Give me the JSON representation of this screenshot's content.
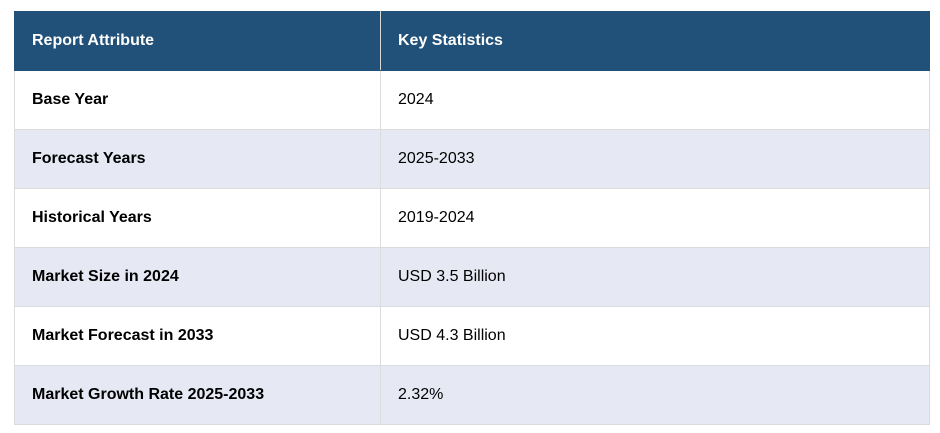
{
  "header": {
    "col1": "Report Attribute",
    "col2": "Key Statistics"
  },
  "rows": [
    {
      "attribute": "Base Year",
      "value": "2024"
    },
    {
      "attribute": "Forecast Years",
      "value": "2025-2033"
    },
    {
      "attribute": "Historical Years",
      "value": "2019-2024"
    },
    {
      "attribute": "Market Size in 2024",
      "value": "USD 3.5 Billion"
    },
    {
      "attribute": "Market Forecast in 2033",
      "value": "USD 4.3 Billion"
    },
    {
      "attribute": "Market Growth Rate 2025-2033",
      "value": "2.32%"
    }
  ],
  "colors": {
    "header_bg": "#215078",
    "alt_row_bg": "#e6e9f4"
  }
}
